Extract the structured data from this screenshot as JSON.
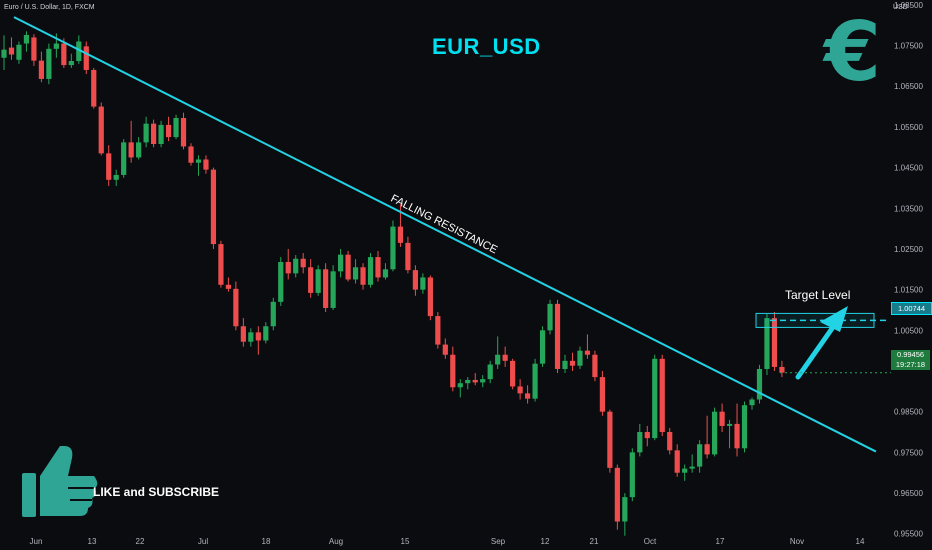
{
  "header": {
    "symbol_desc": "Euro / U.S. Dollar, 1D, FXCM",
    "currency": "USD"
  },
  "annotations": {
    "title": "EUR_USD",
    "euro_symbol": "€",
    "resistance_label": "FALLING RESISTANCE",
    "target_label": "Target Level",
    "like_text": "LIKE and SUBSCRIBE"
  },
  "price_tags": {
    "target": "1.00744",
    "last_price": "0.99456",
    "countdown": "19:27:18"
  },
  "colors": {
    "background": "#0b0c0f",
    "up": "#26a65b",
    "down": "#ef4d4d",
    "trendline": "#22d3e6",
    "title": "#00e0f0",
    "accent": "#2fa596"
  },
  "chart_data": {
    "type": "candlestick",
    "title": "EUR_USD",
    "ylabel": "USD",
    "ylim": [
      0.951,
      1.0862
    ],
    "y_ticks": [
      "1.08500",
      "1.07500",
      "1.06500",
      "1.05500",
      "1.04500",
      "1.03500",
      "1.02500",
      "1.01500",
      "1.00500",
      "0.98500",
      "0.97500",
      "0.96500",
      "0.95500"
    ],
    "x_ticks": [
      "Jun",
      "13",
      "22",
      "Jul",
      "18",
      "Aug",
      "15",
      "Sep",
      "12",
      "21",
      "Oct",
      "17",
      "Nov",
      "14"
    ],
    "grid": false,
    "candles": [
      [
        1.072,
        1.0775,
        1.069,
        1.074
      ],
      [
        1.0745,
        1.077,
        1.0715,
        1.0728
      ],
      [
        1.0715,
        1.076,
        1.0705,
        1.0752
      ],
      [
        1.0755,
        1.0785,
        1.0735,
        1.0776
      ],
      [
        1.077,
        1.0778,
        1.07,
        1.0713
      ],
      [
        1.0713,
        1.0735,
        1.066,
        1.0668
      ],
      [
        1.0668,
        1.0755,
        1.0655,
        1.0742
      ],
      [
        1.0742,
        1.078,
        1.072,
        1.0755
      ],
      [
        1.0755,
        1.0768,
        1.0695,
        1.0702
      ],
      [
        1.0702,
        1.073,
        1.0695,
        1.0712
      ],
      [
        1.0712,
        1.0775,
        1.0705,
        1.076
      ],
      [
        1.0748,
        1.076,
        1.068,
        1.069
      ],
      [
        1.069,
        1.0695,
        1.0595,
        1.06
      ],
      [
        1.06,
        1.061,
        1.048,
        1.0485
      ],
      [
        1.0485,
        1.0505,
        1.0405,
        1.042
      ],
      [
        1.042,
        1.0445,
        1.0405,
        1.0432
      ],
      [
        1.0432,
        1.052,
        1.0425,
        1.0512
      ],
      [
        1.0512,
        1.0565,
        1.0462,
        1.0475
      ],
      [
        1.0475,
        1.0525,
        1.047,
        1.0512
      ],
      [
        1.0512,
        1.0575,
        1.05,
        1.0558
      ],
      [
        1.0558,
        1.0568,
        1.05,
        1.0508
      ],
      [
        1.0508,
        1.0565,
        1.05,
        1.0555
      ],
      [
        1.0555,
        1.0575,
        1.0515,
        1.0525
      ],
      [
        1.0525,
        1.058,
        1.052,
        1.0572
      ],
      [
        1.0572,
        1.0585,
        1.0495,
        1.0502
      ],
      [
        1.0502,
        1.051,
        1.0455,
        1.0462
      ],
      [
        1.0462,
        1.048,
        1.043,
        1.047
      ],
      [
        1.047,
        1.048,
        1.0435,
        1.0445
      ],
      [
        1.0445,
        1.045,
        1.025,
        1.0262
      ],
      [
        1.0262,
        1.027,
        1.0155,
        1.0162
      ],
      [
        1.0162,
        1.018,
        1.0145,
        1.0152
      ],
      [
        1.0152,
        1.017,
        1.005,
        1.006
      ],
      [
        1.006,
        1.008,
        1.001,
        1.0022
      ],
      [
        1.0022,
        1.0055,
        1.001,
        1.0045
      ],
      [
        1.0045,
        1.006,
        0.999,
        1.0025
      ],
      [
        1.0025,
        1.007,
        1.0018,
        1.006
      ],
      [
        1.006,
        1.013,
        1.005,
        1.012
      ],
      [
        1.012,
        1.023,
        1.011,
        1.0218
      ],
      [
        1.0218,
        1.025,
        1.0175,
        1.019
      ],
      [
        1.019,
        1.0235,
        1.018,
        1.0226
      ],
      [
        1.0226,
        1.024,
        1.019,
        1.0205
      ],
      [
        1.0205,
        1.0225,
        1.013,
        1.0142
      ],
      [
        1.0142,
        1.021,
        1.0135,
        1.02
      ],
      [
        1.02,
        1.0215,
        1.0095,
        1.0105
      ],
      [
        1.0105,
        1.021,
        1.01,
        1.0195
      ],
      [
        1.0195,
        1.025,
        1.018,
        1.0236
      ],
      [
        1.0236,
        1.0245,
        1.017,
        1.0175
      ],
      [
        1.0175,
        1.0225,
        1.0165,
        1.0205
      ],
      [
        1.0205,
        1.0215,
        1.015,
        1.0162
      ],
      [
        1.0162,
        1.024,
        1.0155,
        1.023
      ],
      [
        1.023,
        1.0245,
        1.017,
        1.018
      ],
      [
        1.018,
        1.0215,
        1.0175,
        1.02
      ],
      [
        1.02,
        1.032,
        1.0195,
        1.0305
      ],
      [
        1.0305,
        1.036,
        1.0255,
        1.0265
      ],
      [
        1.0265,
        1.028,
        1.019,
        1.0198
      ],
      [
        1.0198,
        1.021,
        1.0135,
        1.015
      ],
      [
        1.015,
        1.019,
        1.014,
        1.018
      ],
      [
        1.018,
        1.0185,
        1.0075,
        1.0085
      ],
      [
        1.0085,
        1.0095,
        1.0005,
        1.0015
      ],
      [
        1.0015,
        1.003,
        0.998,
        0.999
      ],
      [
        0.999,
        1.001,
        0.99,
        0.991
      ],
      [
        0.991,
        0.993,
        0.9885,
        0.992
      ],
      [
        0.992,
        0.9935,
        0.9905,
        0.9928
      ],
      [
        0.9928,
        0.9945,
        0.9915,
        0.9922
      ],
      [
        0.9922,
        0.994,
        0.991,
        0.993
      ],
      [
        0.993,
        0.9975,
        0.992,
        0.9966
      ],
      [
        0.9966,
        1.0035,
        0.9955,
        0.999
      ],
      [
        0.999,
        1.001,
        0.996,
        0.9975
      ],
      [
        0.9975,
        0.998,
        0.9905,
        0.9912
      ],
      [
        0.9912,
        0.993,
        0.988,
        0.9895
      ],
      [
        0.9895,
        0.9915,
        0.987,
        0.9882
      ],
      [
        0.9882,
        0.998,
        0.9875,
        0.9968
      ],
      [
        0.9968,
        1.006,
        0.996,
        1.005
      ],
      [
        1.005,
        1.0125,
        1.004,
        1.0115
      ],
      [
        1.0115,
        1.0125,
        0.9945,
        0.9955
      ],
      [
        0.9955,
        0.999,
        0.9945,
        0.9975
      ],
      [
        0.9975,
        0.9995,
        0.995,
        0.9963
      ],
      [
        0.9963,
        1.001,
        0.9955,
        1.0
      ],
      [
        1.0,
        1.004,
        0.998,
        0.999
      ],
      [
        0.999,
        1.0,
        0.9925,
        0.9935
      ],
      [
        0.9935,
        0.995,
        0.984,
        0.985
      ],
      [
        0.985,
        0.9855,
        0.97,
        0.9712
      ],
      [
        0.9712,
        0.972,
        0.956,
        0.958
      ],
      [
        0.958,
        0.965,
        0.9545,
        0.964
      ],
      [
        0.964,
        0.976,
        0.963,
        0.975
      ],
      [
        0.975,
        0.982,
        0.974,
        0.98
      ],
      [
        0.98,
        0.9815,
        0.9765,
        0.9785
      ],
      [
        0.9785,
        0.999,
        0.978,
        0.998
      ],
      [
        0.998,
        0.999,
        0.979,
        0.98
      ],
      [
        0.98,
        0.981,
        0.9745,
        0.9755
      ],
      [
        0.9755,
        0.977,
        0.969,
        0.97
      ],
      [
        0.97,
        0.972,
        0.968,
        0.971
      ],
      [
        0.971,
        0.9745,
        0.97,
        0.9715
      ],
      [
        0.9715,
        0.978,
        0.97,
        0.977
      ],
      [
        0.977,
        0.984,
        0.9735,
        0.9745
      ],
      [
        0.9745,
        0.986,
        0.974,
        0.985
      ],
      [
        0.985,
        0.987,
        0.98,
        0.9815
      ],
      [
        0.9815,
        0.983,
        0.976,
        0.982
      ],
      [
        0.982,
        0.987,
        0.974,
        0.976
      ],
      [
        0.976,
        0.9875,
        0.975,
        0.9866
      ],
      [
        0.9866,
        0.9885,
        0.9855,
        0.988
      ],
      [
        0.988,
        0.9965,
        0.987,
        0.9955
      ],
      [
        0.9955,
        1.009,
        0.994,
        1.008
      ],
      [
        1.008,
        1.0095,
        0.995,
        0.996
      ],
      [
        0.996,
        0.9975,
        0.9935,
        0.9946
      ]
    ],
    "trendline": [
      [
        0,
        1.082
      ],
      [
        104,
        0.9752
      ]
    ],
    "target_level": 1.00744,
    "last_price": 0.99456
  }
}
